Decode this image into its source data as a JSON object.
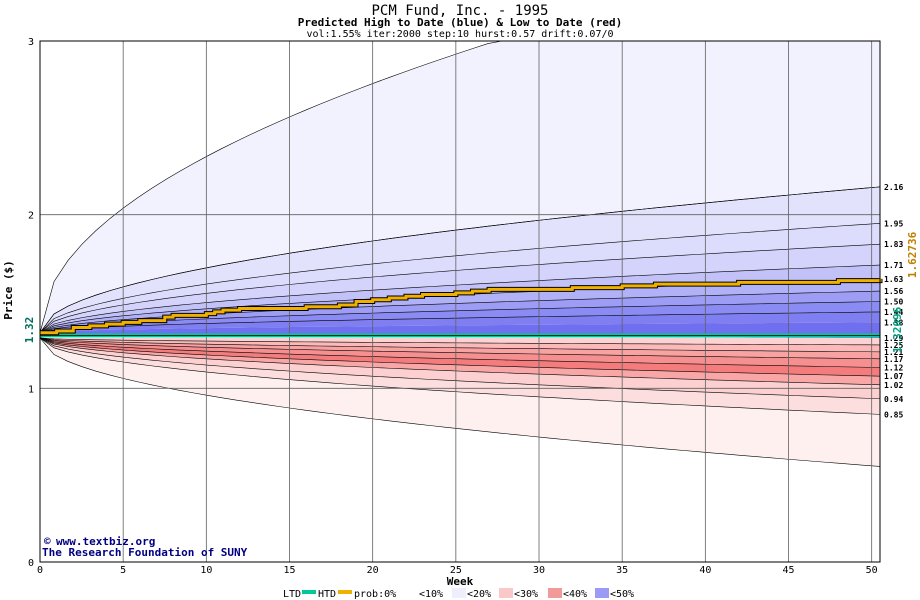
{
  "chart_data": {
    "type": "area",
    "title": "PCM Fund, Inc. - 1995",
    "subtitle": "Predicted High to Date (blue) &  Low to Date (red)",
    "params": "vol:1.55% iter:2000 step:10 hurst:0.57 drift:0.07/0",
    "xlabel": "Week",
    "ylabel": "Price ($)",
    "xlim": [
      0,
      50.5
    ],
    "ylim": [
      0,
      3
    ],
    "x_ticks": [
      0,
      5,
      10,
      15,
      20,
      25,
      30,
      35,
      40,
      45,
      50
    ],
    "y_ticks": [
      0,
      1,
      2,
      3
    ],
    "grid": true,
    "start_price": 1.32,
    "start_price_label": "1.32",
    "low_level": 1.29,
    "ltd_value_label": "1.32096",
    "htd_value_label": "1.62736",
    "right_labels": [
      "2.16",
      "1.95",
      "1.83",
      "1.71",
      "1.63",
      "1.56",
      "1.50",
      "1.44",
      "1.38",
      "1.29",
      "1.25",
      "1.21",
      "1.17",
      "1.12",
      "1.07",
      "1.02",
      "0.94",
      "0.85"
    ],
    "high_bands": [
      {
        "lo": 1.38,
        "hi": 1.44,
        "fill": "#7f7ff2"
      },
      {
        "lo": 1.44,
        "hi": 1.5,
        "fill": "#8b8bf4"
      },
      {
        "lo": 1.5,
        "hi": 1.56,
        "fill": "#9d9df5"
      },
      {
        "lo": 1.56,
        "hi": 1.63,
        "fill": "#b1b1f7"
      },
      {
        "lo": 1.63,
        "hi": 1.71,
        "fill": "#c2c2f9"
      },
      {
        "lo": 1.71,
        "hi": 1.83,
        "fill": "#d3d3fb"
      },
      {
        "lo": 1.83,
        "hi": 1.95,
        "fill": "#dcdcfc"
      },
      {
        "lo": 1.95,
        "hi": 2.16,
        "fill": "#e2e2fc"
      },
      {
        "lo": 2.16,
        "hi": 3.0,
        "fill": "#f2f2fe"
      }
    ],
    "low_bands": [
      {
        "lo": 1.25,
        "hi": 1.29,
        "fill": "#fdd2d2"
      },
      {
        "lo": 1.21,
        "hi": 1.25,
        "fill": "#fbb9b9"
      },
      {
        "lo": 1.17,
        "hi": 1.21,
        "fill": "#f8a2a2"
      },
      {
        "lo": 1.12,
        "hi": 1.17,
        "fill": "#f68f8f"
      },
      {
        "lo": 1.07,
        "hi": 1.12,
        "fill": "#f47c7c"
      },
      {
        "lo": 1.02,
        "hi": 1.07,
        "fill": "#f8a6a6"
      },
      {
        "lo": 0.94,
        "hi": 1.02,
        "fill": "#fcd0d0"
      },
      {
        "lo": 0.85,
        "hi": 0.94,
        "fill": "#fddede"
      },
      {
        "lo": 0.55,
        "hi": 0.85,
        "fill": "#fff0f0"
      }
    ],
    "outer_low_end": 0.55,
    "htd_series": {
      "name": "HTD",
      "color": "#f0b000",
      "x": [
        0,
        1,
        2,
        3,
        4,
        5,
        6,
        7,
        7.5,
        8,
        9,
        10,
        10.5,
        11,
        12,
        14,
        16,
        18,
        19,
        20,
        21,
        22,
        23,
        24,
        25,
        26,
        27,
        28,
        30,
        32,
        34,
        35,
        37,
        40,
        42,
        45,
        48,
        50.5
      ],
      "y": [
        1.32,
        1.33,
        1.35,
        1.36,
        1.37,
        1.38,
        1.39,
        1.39,
        1.41,
        1.42,
        1.42,
        1.43,
        1.44,
        1.45,
        1.46,
        1.46,
        1.47,
        1.48,
        1.5,
        1.51,
        1.52,
        1.53,
        1.54,
        1.54,
        1.55,
        1.56,
        1.57,
        1.57,
        1.57,
        1.58,
        1.58,
        1.59,
        1.6,
        1.6,
        1.61,
        1.61,
        1.62,
        1.63
      ]
    },
    "ltd_series": {
      "name": "LTD",
      "color": "#00c898",
      "x": [
        0,
        50.5
      ],
      "y": [
        1.32,
        1.32
      ]
    }
  },
  "credits": {
    "line1": "www.textbiz.org",
    "line2": "The Research Foundation of SUNY"
  },
  "legend": {
    "ltd": "LTD",
    "htd": "HTD",
    "prob": "prob:0%",
    "bins": [
      "<10%",
      "<20%",
      "<30%",
      "<40%",
      "<50%"
    ],
    "colors": {
      "ltd": "#00c898",
      "htd": "#f0b000"
    }
  }
}
